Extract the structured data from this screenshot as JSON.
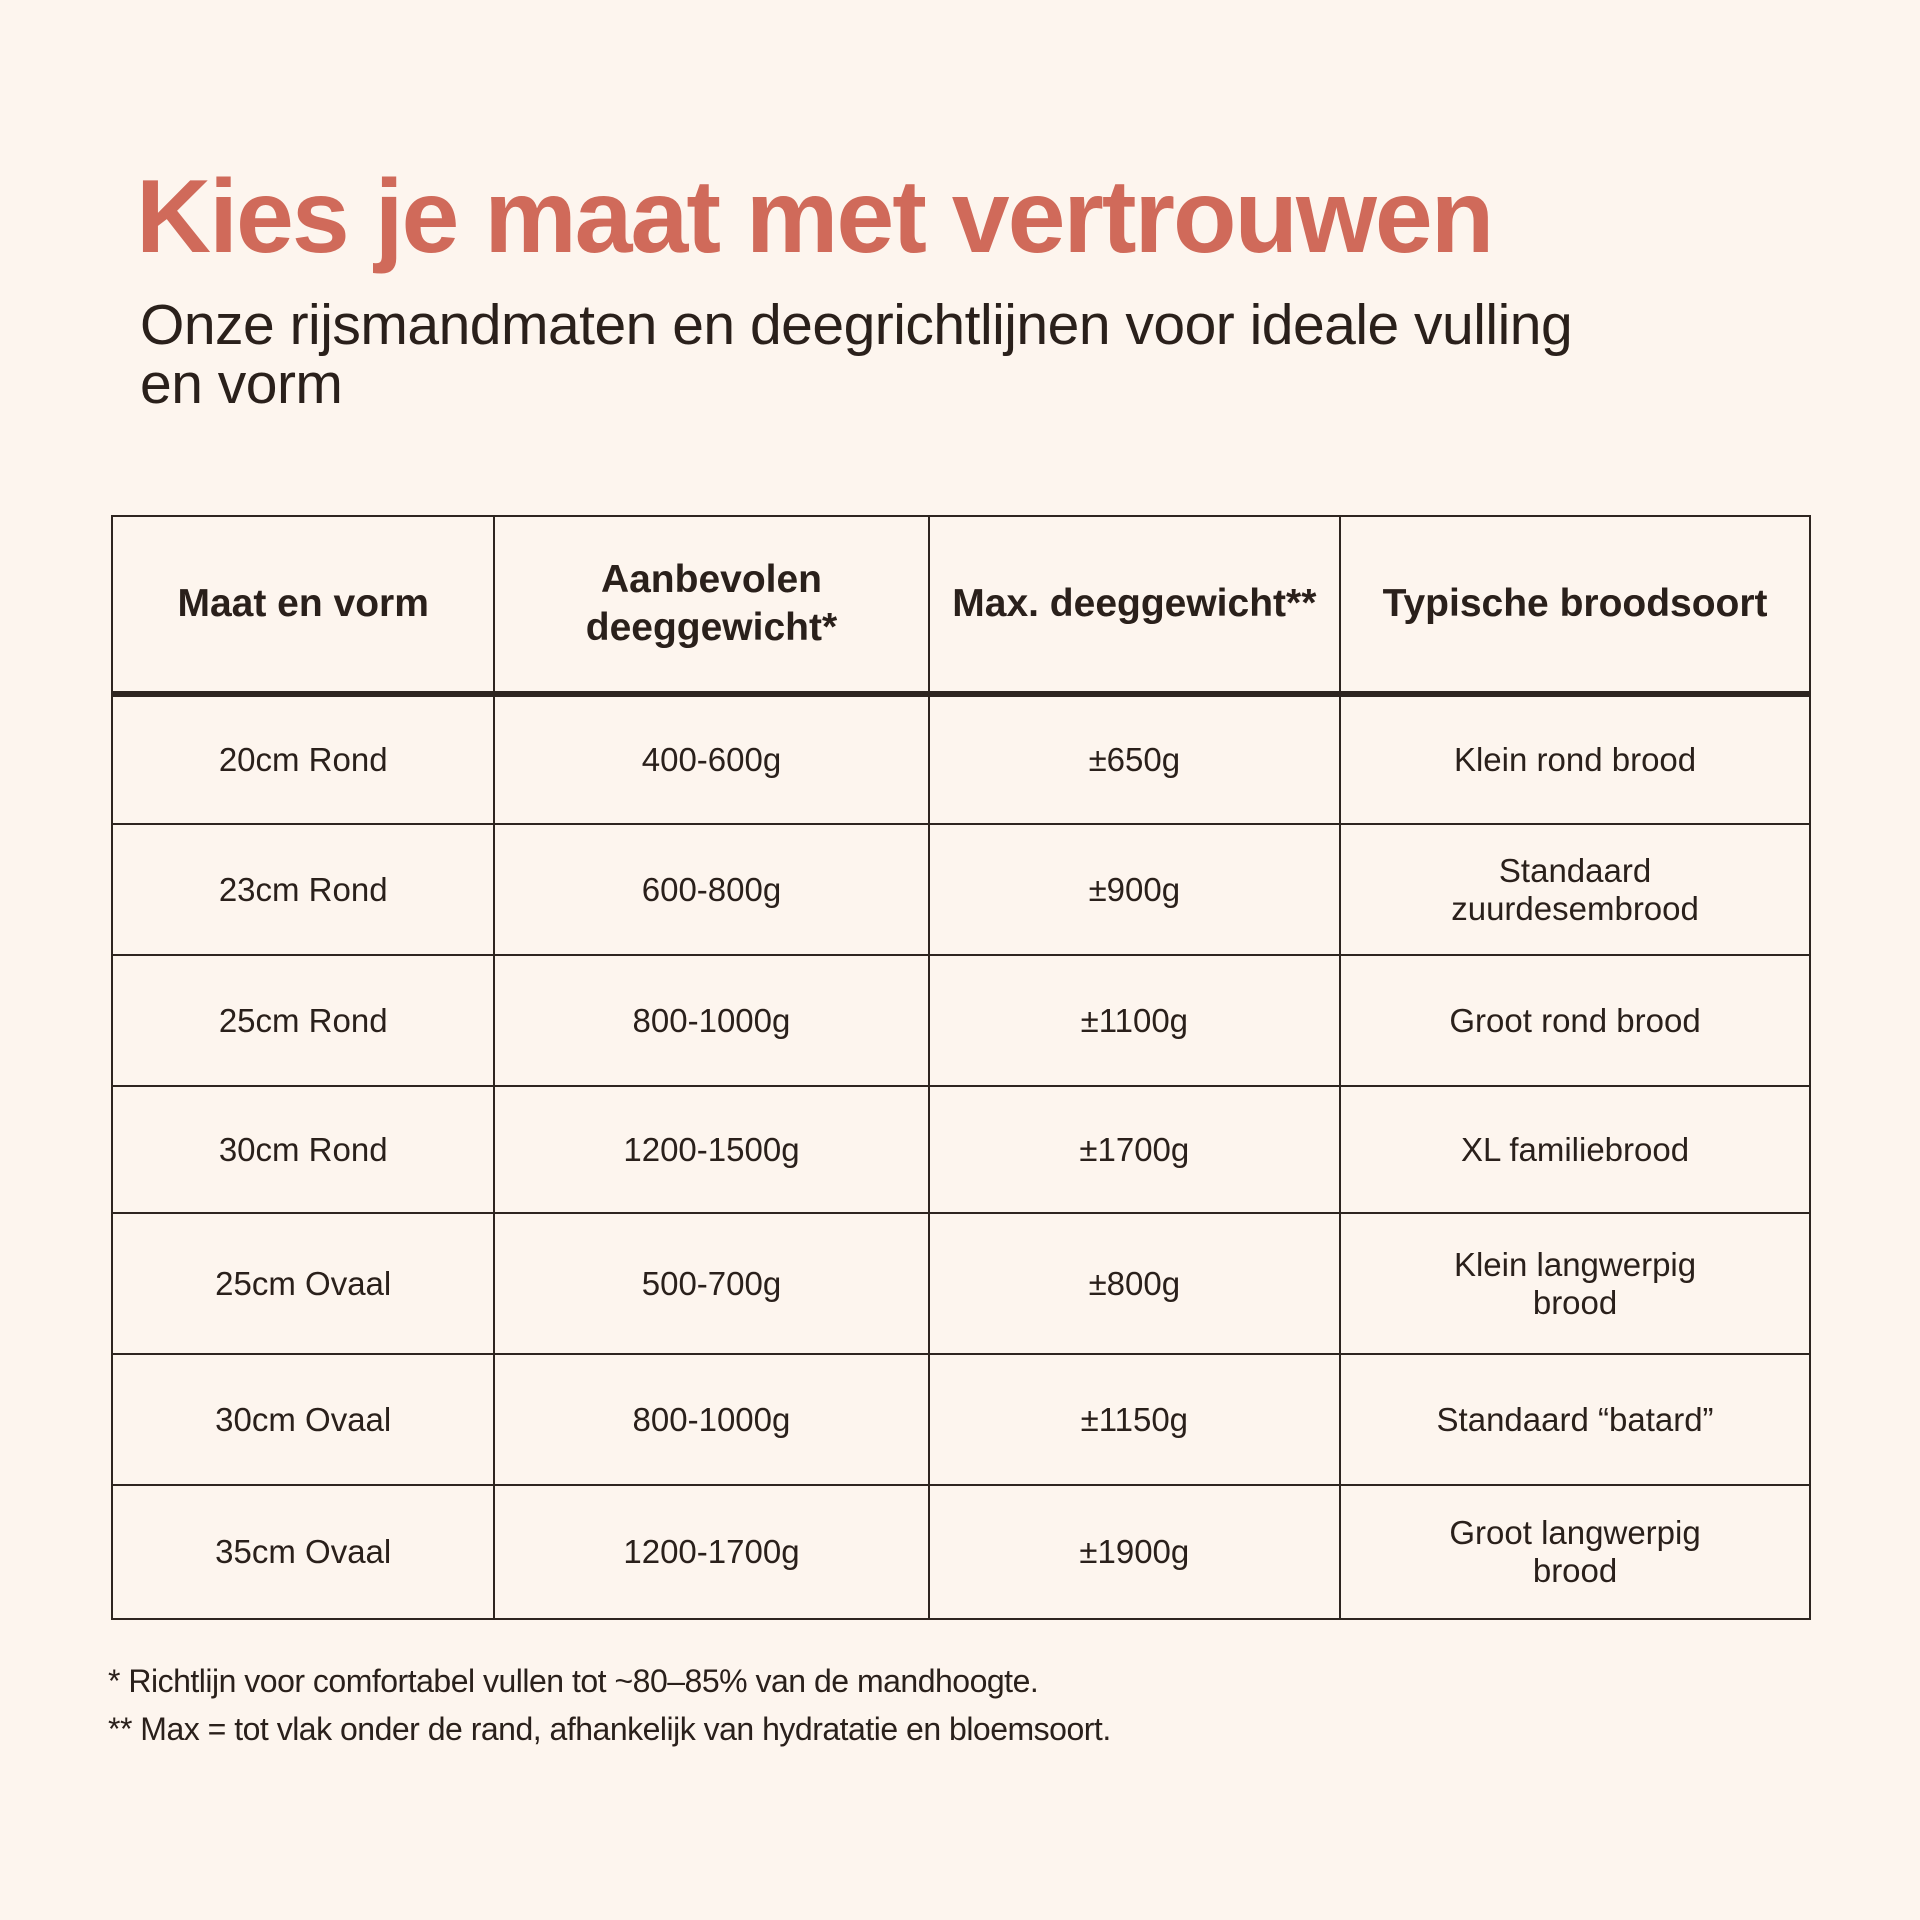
{
  "title": "Kies je maat met vertrouwen",
  "subtitle": "Onze rijsmandmaten en deegrichtlijnen voor ideale vulling en vorm",
  "colors": {
    "background": "#fdf5ee",
    "title": "#d06a5a",
    "text": "#2a201b"
  },
  "table": {
    "headers": [
      "Maat en vorm",
      "Aanbevolen deeggewicht*",
      "Max. deeggewicht**",
      "Typische broodsoort"
    ],
    "rows": [
      [
        "20cm Rond",
        "400-600g",
        "±650g",
        "Klein rond brood"
      ],
      [
        "23cm Rond",
        "600-800g",
        "±900g",
        "Standaard zuurdesembrood"
      ],
      [
        "25cm Rond",
        "800-1000g",
        "±1100g",
        "Groot rond brood"
      ],
      [
        "30cm Rond",
        "1200-1500g",
        "±1700g",
        "XL familiebrood"
      ],
      [
        "25cm Ovaal",
        "500-700g",
        "±800g",
        "Klein langwerpig brood"
      ],
      [
        "30cm Ovaal",
        "800-1000g",
        "±1150g",
        "Standaard “batard”"
      ],
      [
        "35cm Ovaal",
        "1200-1700g",
        "±1900g",
        "Groot langwerpig brood"
      ]
    ]
  },
  "footnotes": [
    "* Richtlijn voor comfortabel vullen tot ~80–85% van de mandhoogte.",
    "** Max = tot vlak onder de rand, afhankelijk van hydratatie en bloemsoort."
  ]
}
